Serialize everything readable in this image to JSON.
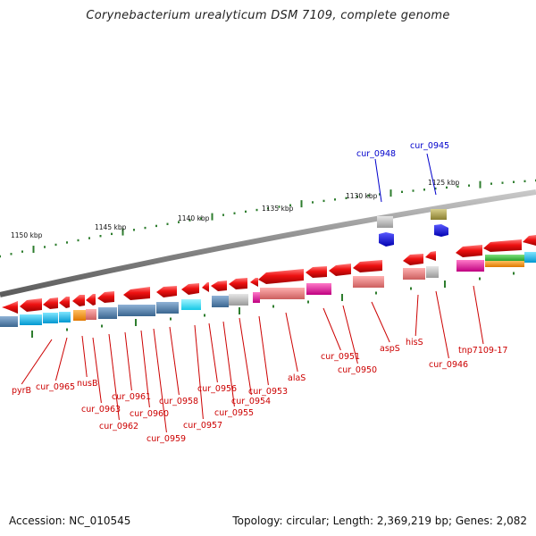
{
  "title": "Corynebacterium urealyticum DSM 7109, complete genome",
  "footer": {
    "accession": "Accession: NC_010545",
    "topology": "Topology: circular; Length: 2,369,219 bp; Genes: 2,082"
  },
  "colors": {
    "backbone": "#8a8a8a",
    "tick": "#2e7d2e",
    "gene_red": "#ee1111",
    "label_red": "#cc0000",
    "label_blue": "#0000cc"
  },
  "ruler_labels": [
    "1150 kbp",
    "1145 kbp",
    "1140 kbp",
    "1135 kbp",
    "1130 kbp",
    "1125 kbp"
  ],
  "gene_labels_bottom": [
    "pyrB",
    "cur_0965",
    "nusB",
    "cur_0963",
    "cur_0962",
    "cur_0961",
    "cur_0960",
    "cur_0959",
    "cur_0958",
    "cur_0957",
    "cur_0956",
    "cur_0955",
    "cur_0954",
    "cur_0953",
    "alaS",
    "cur_0951",
    "cur_0950",
    "aspS",
    "hisS",
    "cur_0946",
    "tnp7109-17"
  ],
  "gene_labels_top": [
    "cur_0948",
    "cur_0945"
  ]
}
